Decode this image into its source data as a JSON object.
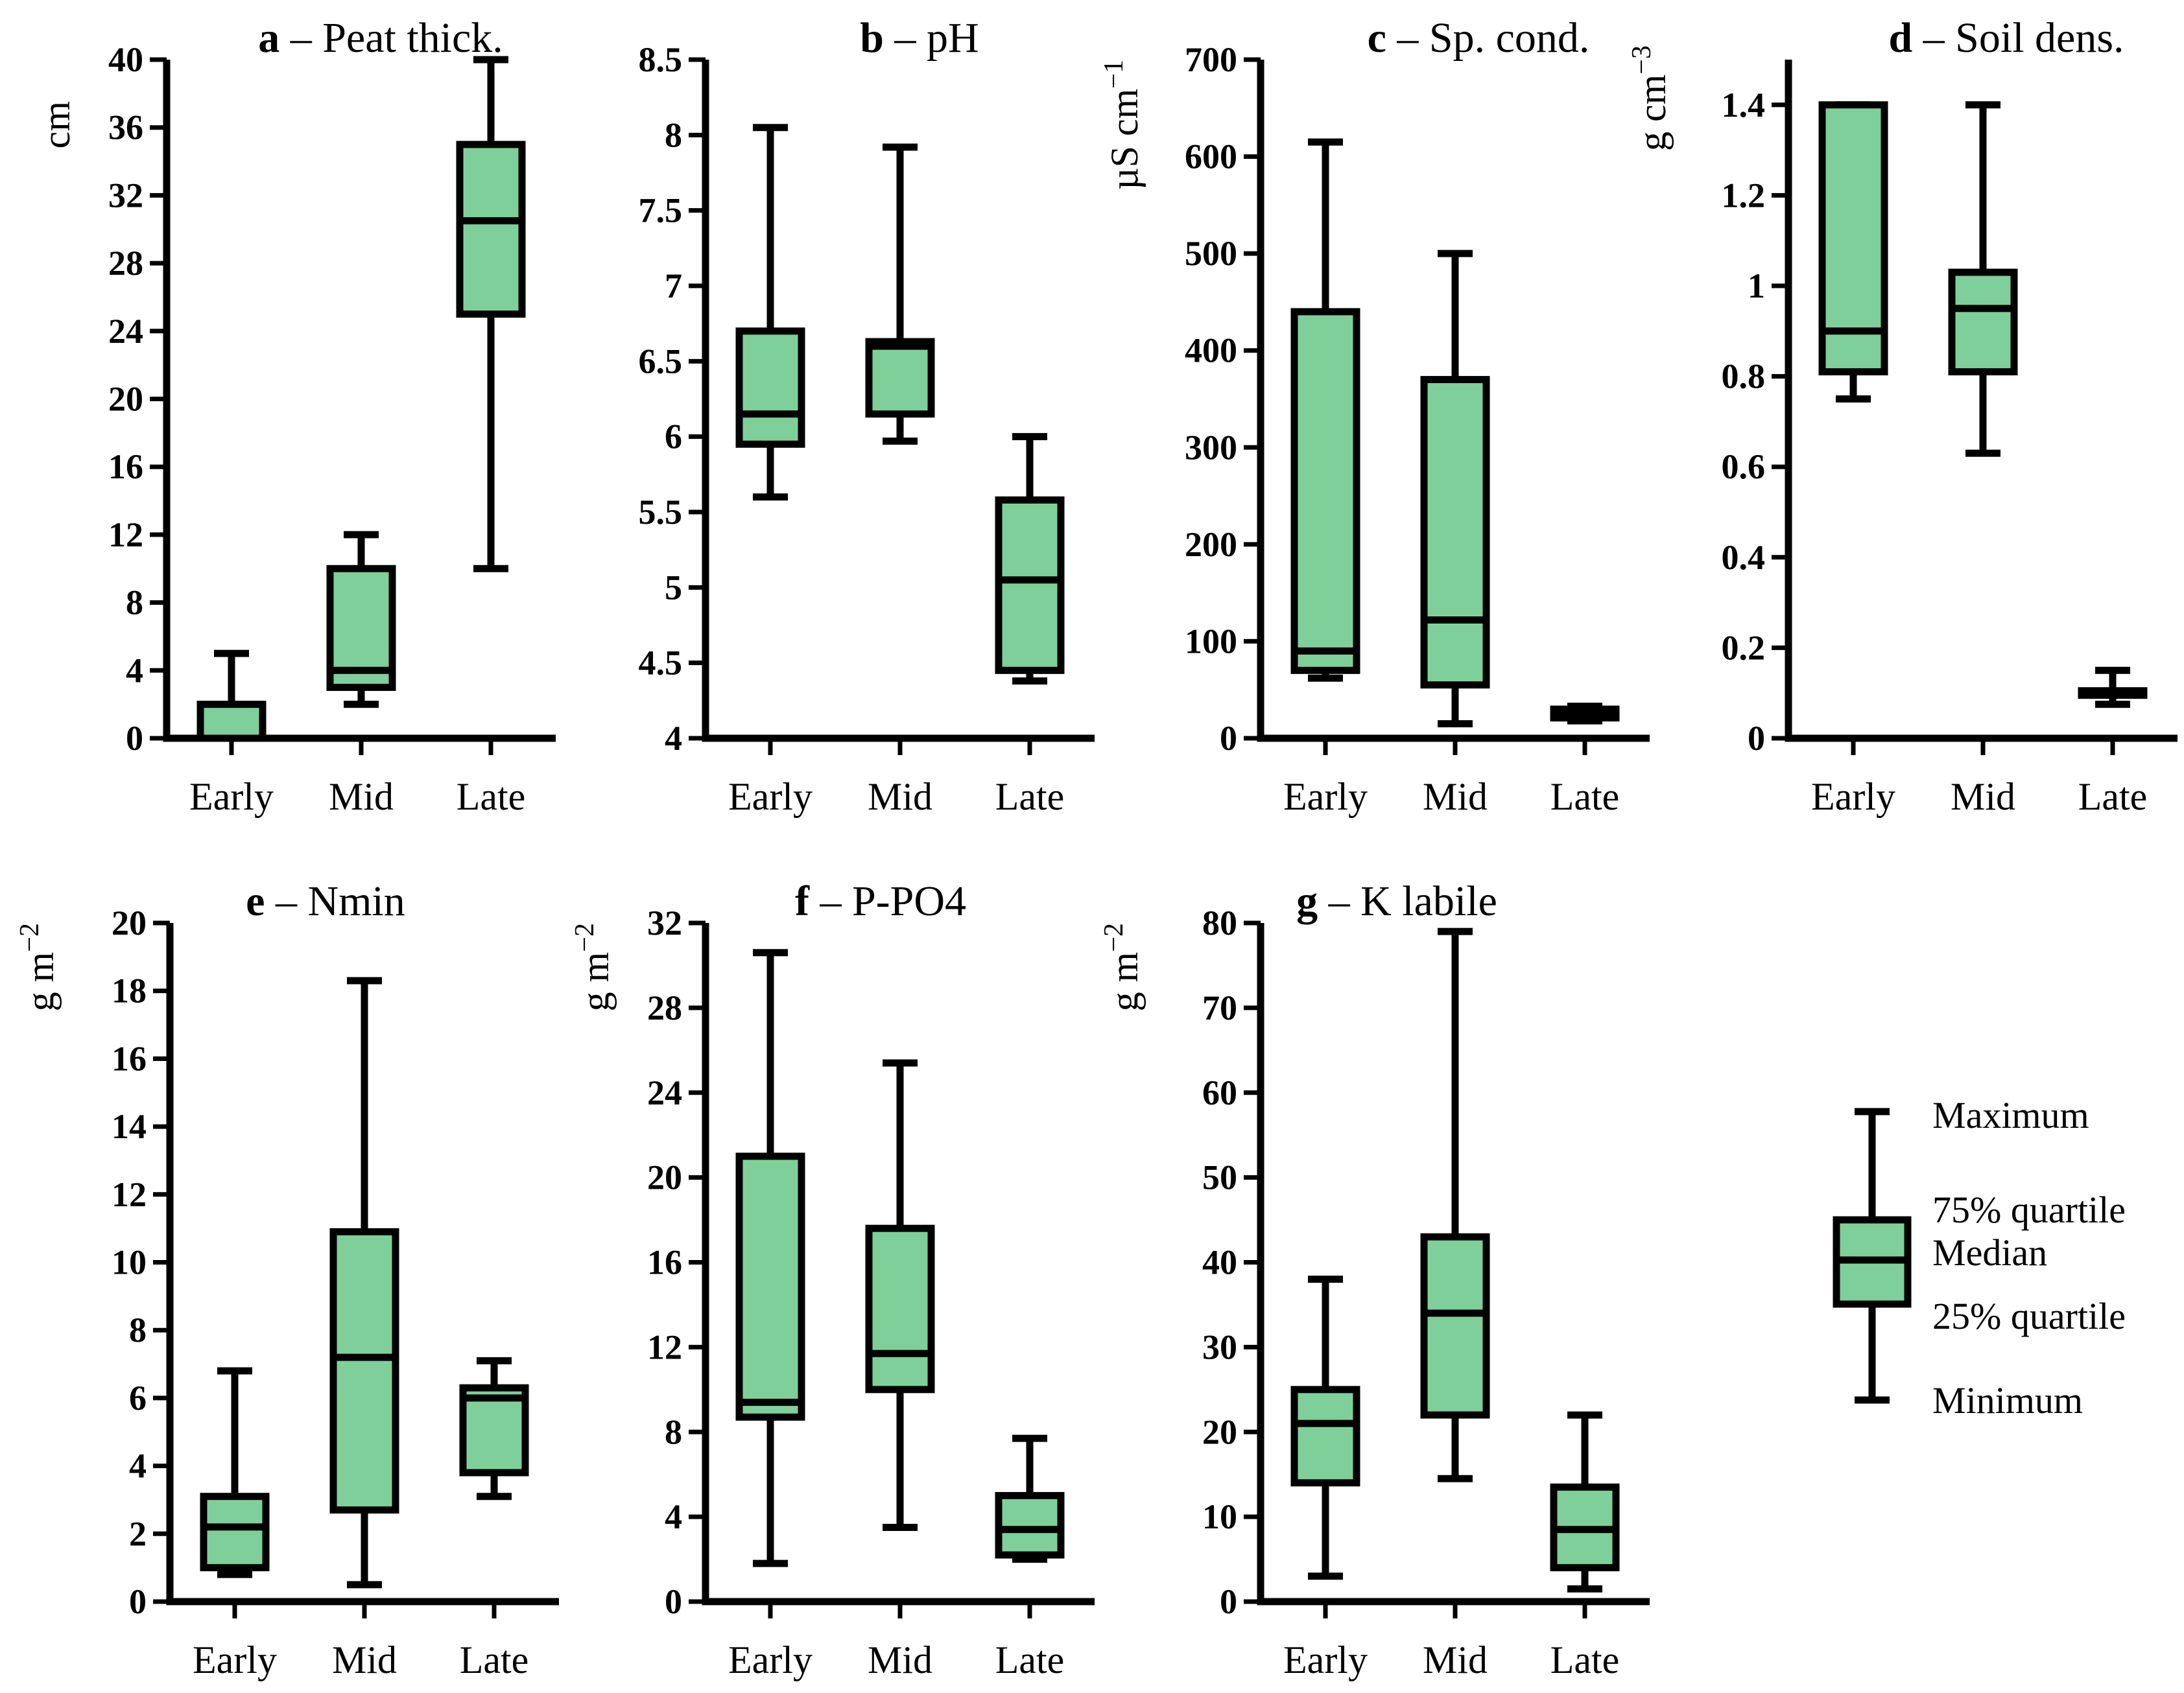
{
  "colors": {
    "box_fill": "#7fcf9a",
    "stroke": "#000000"
  },
  "legend": {
    "maximum": "Maximum",
    "q75": "75% quartile",
    "median": "Median",
    "q25": "25% quartile",
    "minimum": "Minimum"
  },
  "chart_data": [
    {
      "id": "a",
      "type": "boxplot",
      "title_letter": "a",
      "title": " – Peat thick.",
      "ylabel": "cm",
      "ylim": [
        0,
        40
      ],
      "yticks": [
        "0",
        "4",
        "8",
        "12",
        "16",
        "20",
        "24",
        "28",
        "32",
        "36",
        "40"
      ],
      "categories": [
        "Early",
        "Mid",
        "Late"
      ],
      "boxes": [
        {
          "min": 0,
          "q1": 0,
          "median": 0,
          "q3": 2,
          "max": 5
        },
        {
          "min": 2,
          "q1": 3,
          "median": 4,
          "q3": 10,
          "max": 12
        },
        {
          "min": 10,
          "q1": 25,
          "median": 30.5,
          "q3": 35,
          "max": 40
        }
      ]
    },
    {
      "id": "b",
      "type": "boxplot",
      "title_letter": "b",
      "title": " – pH",
      "ylabel": "",
      "ylim": [
        4,
        8.5
      ],
      "yticks": [
        "4",
        "4.5",
        "5",
        "5.5",
        "6",
        "6.5",
        "7",
        "7.5",
        "8",
        "8.5"
      ],
      "categories": [
        "Early",
        "Mid",
        "Late"
      ],
      "boxes": [
        {
          "min": 5.6,
          "q1": 5.95,
          "median": 6.15,
          "q3": 6.7,
          "max": 8.05
        },
        {
          "min": 5.97,
          "q1": 6.15,
          "median": 6.6,
          "q3": 6.63,
          "max": 7.92
        },
        {
          "min": 4.38,
          "q1": 4.45,
          "median": 5.05,
          "q3": 5.58,
          "max": 6.0
        }
      ]
    },
    {
      "id": "c",
      "type": "boxplot",
      "title_letter": "c",
      "title": " – Sp. cond.",
      "ylabel": "µS cm",
      "ylabel_sup": "−1",
      "ylim": [
        0,
        700
      ],
      "yticks": [
        "0",
        "100",
        "200",
        "300",
        "400",
        "500",
        "600",
        "700"
      ],
      "categories": [
        "Early",
        "Mid",
        "Late"
      ],
      "boxes": [
        {
          "min": 62,
          "q1": 70,
          "median": 90,
          "q3": 440,
          "max": 615
        },
        {
          "min": 15,
          "q1": 55,
          "median": 122,
          "q3": 370,
          "max": 500
        },
        {
          "min": 18,
          "q1": 21,
          "median": 26,
          "q3": 30,
          "max": 33
        }
      ]
    },
    {
      "id": "d",
      "type": "boxplot",
      "title_letter": "d",
      "title": " – Soil dens.",
      "ylabel": "g cm",
      "ylabel_sup": "−3",
      "ylim": [
        0,
        1.5
      ],
      "yticks": [
        "0",
        "0.2",
        "0.4",
        "0.6",
        "0.8",
        "1",
        "1.2",
        "1.4"
      ],
      "categories": [
        "Early",
        "Mid",
        "Late"
      ],
      "boxes": [
        {
          "min": 0.75,
          "q1": 0.81,
          "median": 0.9,
          "q3": 1.4,
          "max": 1.4
        },
        {
          "min": 0.63,
          "q1": 0.81,
          "median": 0.95,
          "q3": 1.03,
          "max": 1.4
        },
        {
          "min": 0.075,
          "q1": 0.095,
          "median": 0.1,
          "q3": 0.105,
          "max": 0.15
        }
      ]
    },
    {
      "id": "e",
      "type": "boxplot",
      "title_letter": "e",
      "title": " – Nmin",
      "ylabel": "g m",
      "ylabel_sup": "−2",
      "ylim": [
        0,
        20
      ],
      "yticks": [
        "0",
        "2",
        "4",
        "6",
        "8",
        "10",
        "12",
        "14",
        "16",
        "18",
        "20"
      ],
      "categories": [
        "Early",
        "Mid",
        "Late"
      ],
      "boxes": [
        {
          "min": 0.8,
          "q1": 1.0,
          "median": 2.2,
          "q3": 3.1,
          "max": 6.8
        },
        {
          "min": 0.5,
          "q1": 2.7,
          "median": 7.2,
          "q3": 10.9,
          "max": 18.3
        },
        {
          "min": 3.1,
          "q1": 3.8,
          "median": 6.0,
          "q3": 6.3,
          "max": 7.1
        }
      ]
    },
    {
      "id": "f",
      "type": "boxplot",
      "title_letter": "f",
      "title": " – P-PO4",
      "ylabel": "g m",
      "ylabel_sup": "−2",
      "ylim": [
        0,
        32
      ],
      "yticks": [
        "0",
        "4",
        "8",
        "12",
        "16",
        "20",
        "24",
        "28",
        "32"
      ],
      "categories": [
        "Early",
        "Mid",
        "Late"
      ],
      "boxes": [
        {
          "min": 1.8,
          "q1": 8.7,
          "median": 9.4,
          "q3": 21.0,
          "max": 30.6
        },
        {
          "min": 3.5,
          "q1": 10.0,
          "median": 11.7,
          "q3": 17.6,
          "max": 25.4
        },
        {
          "min": 2.0,
          "q1": 2.2,
          "median": 3.4,
          "q3": 5.0,
          "max": 7.7
        }
      ]
    },
    {
      "id": "g",
      "type": "boxplot",
      "title_letter": "g",
      "title": " – K labile",
      "ylabel": "g m",
      "ylabel_sup": "−2",
      "ylim": [
        0,
        80
      ],
      "yticks": [
        "0",
        "10",
        "20",
        "30",
        "40",
        "50",
        "60",
        "70",
        "80"
      ],
      "categories": [
        "Early",
        "Mid",
        "Late"
      ],
      "boxes": [
        {
          "min": 3,
          "q1": 14,
          "median": 21,
          "q3": 25,
          "max": 38
        },
        {
          "min": 14.5,
          "q1": 22,
          "median": 34,
          "q3": 43,
          "max": 79
        },
        {
          "min": 1.5,
          "q1": 4,
          "median": 8.5,
          "q3": 13.5,
          "max": 22
        }
      ]
    }
  ]
}
